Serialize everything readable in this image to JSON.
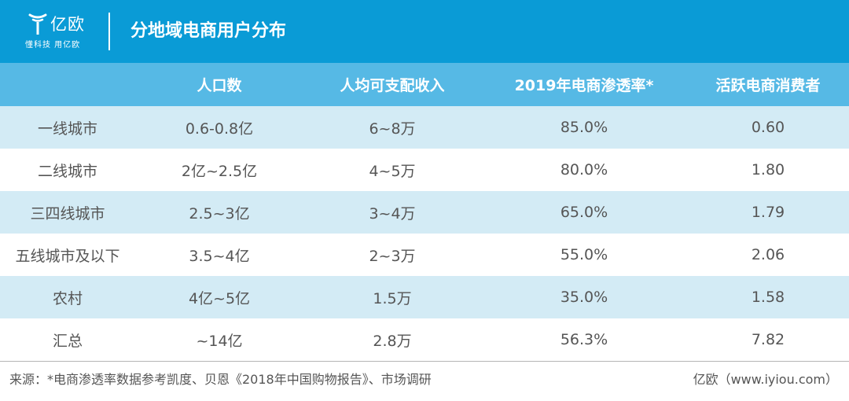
{
  "header": {
    "logo_text": "亿欧",
    "logo_slogan": "懂科技 用亿欧",
    "title": "分地域电商用户分布",
    "background_color": "#0a9bd6",
    "logo_icon": "yiou-logo-icon"
  },
  "chart_data": {
    "type": "table",
    "title": "分地域电商用户分布",
    "columns": [
      "",
      "人口数",
      "人均可支配收入",
      "2019年电商渗透率*",
      "活跃电商消费者"
    ],
    "rows": [
      [
        "一线城市",
        "0.6-0.8亿",
        "6~8万",
        "85.0%",
        "0.60"
      ],
      [
        "二线城市",
        "2亿~2.5亿",
        "4~5万",
        "80.0%",
        "1.80"
      ],
      [
        "三四线城市",
        "2.5~3亿",
        "3~4万",
        "65.0%",
        "1.79"
      ],
      [
        "五线城市及以下",
        "3.5~4亿",
        "2~3万",
        "55.0%",
        "2.06"
      ],
      [
        "农村",
        "4亿~5亿",
        "1.5万",
        "35.0%",
        "1.58"
      ],
      [
        "汇总",
        "~14亿",
        "2.8万",
        "56.3%",
        "7.82"
      ]
    ],
    "header_color": "#56b9e5",
    "band_color": "#d3ebf5"
  },
  "footer": {
    "source": "来源：*电商渗透率数据参考凯度、贝恩《2018年中国购物报告》、市场调研",
    "credit": "亿欧（www.iyiou.com）"
  }
}
